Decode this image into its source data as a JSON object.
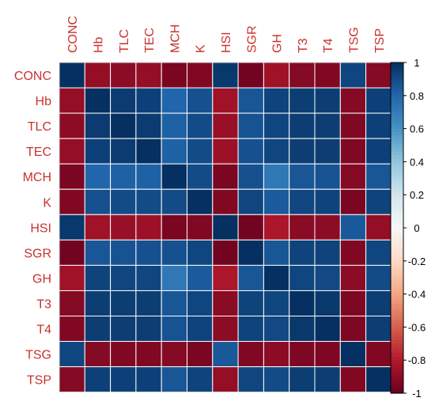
{
  "chart_data": {
    "type": "heatmap",
    "title": "",
    "variables": [
      "CONC",
      "Hb",
      "TLC",
      "TEC",
      "MCH",
      "K",
      "HSI",
      "SGR",
      "GH",
      "T3",
      "T4",
      "TSG",
      "TSP"
    ],
    "matrix": [
      [
        1.0,
        -0.88,
        -0.9,
        -0.88,
        -0.95,
        -0.93,
        0.97,
        -0.97,
        -0.85,
        -0.92,
        -0.93,
        0.92,
        -0.92
      ],
      [
        -0.88,
        1.0,
        0.96,
        0.94,
        0.8,
        0.88,
        -0.85,
        0.86,
        0.93,
        0.95,
        0.95,
        -0.92,
        0.94
      ],
      [
        -0.9,
        0.96,
        1.0,
        0.96,
        0.82,
        0.9,
        -0.87,
        0.87,
        0.92,
        0.95,
        0.95,
        -0.93,
        0.94
      ],
      [
        -0.88,
        0.94,
        0.96,
        1.0,
        0.82,
        0.9,
        -0.86,
        0.88,
        0.92,
        0.95,
        0.95,
        -0.93,
        0.94
      ],
      [
        -0.95,
        0.8,
        0.82,
        0.82,
        1.0,
        0.9,
        -0.95,
        0.88,
        0.72,
        0.86,
        0.87,
        -0.92,
        0.86
      ],
      [
        -0.93,
        0.88,
        0.9,
        0.9,
        0.9,
        1.0,
        -0.93,
        0.92,
        0.84,
        0.92,
        0.93,
        -0.95,
        0.93
      ],
      [
        0.97,
        -0.85,
        -0.87,
        -0.86,
        -0.95,
        -0.93,
        1.0,
        -0.97,
        -0.82,
        -0.91,
        -0.9,
        0.85,
        -0.88
      ],
      [
        -0.97,
        0.86,
        0.87,
        0.88,
        0.88,
        0.92,
        -0.97,
        1.0,
        0.86,
        0.93,
        0.93,
        -0.93,
        0.92
      ],
      [
        -0.85,
        0.93,
        0.92,
        0.92,
        0.72,
        0.84,
        -0.82,
        0.86,
        1.0,
        0.92,
        0.91,
        -0.9,
        0.9
      ],
      [
        -0.92,
        0.95,
        0.95,
        0.95,
        0.86,
        0.92,
        -0.91,
        0.93,
        0.92,
        1.0,
        0.97,
        -0.94,
        0.95
      ],
      [
        -0.93,
        0.95,
        0.95,
        0.95,
        0.87,
        0.93,
        -0.9,
        0.93,
        0.91,
        0.97,
        1.0,
        -0.94,
        0.95
      ],
      [
        0.92,
        -0.92,
        -0.93,
        -0.93,
        -0.92,
        -0.95,
        0.85,
        -0.93,
        -0.9,
        -0.94,
        -0.94,
        1.0,
        -0.93
      ],
      [
        -0.92,
        0.94,
        0.94,
        0.94,
        0.86,
        0.93,
        -0.88,
        0.92,
        0.9,
        0.95,
        0.95,
        -0.93,
        1.0
      ]
    ],
    "colorbar": {
      "range": [
        -1,
        1
      ],
      "ticks": [
        "1",
        "0.8",
        "0.6",
        "0.4",
        "0.2",
        "0",
        "-0.2",
        "-0.4",
        "-0.6",
        "-0.8",
        "-1"
      ],
      "colors": {
        "neg": "#67001f",
        "zero": "#f7f7f7",
        "pos": "#053061"
      }
    },
    "label_color": "#c8322e",
    "grid": true,
    "legend_position": "right"
  }
}
